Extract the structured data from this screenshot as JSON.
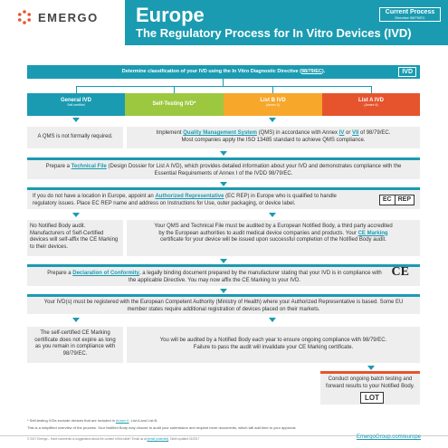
{
  "header": {
    "logo_text": "EMERGO",
    "title": "Europe",
    "subtitle": "The Regulatory Process for In Vitro Devices (IVD)",
    "current_process_label": "Current Process",
    "directive_label": "Directive 98/79/EC"
  },
  "step1": {
    "text_pre": "Determine classification of your IVD using the In Vitro Diagnostic Directive (",
    "text_link": "98/79/EC",
    "text_post": ").",
    "tag": "IVD"
  },
  "columns": [
    {
      "label": "General IVD",
      "sub": "Self-certified"
    },
    {
      "label": "Self-Testing IVD*",
      "sub": ""
    },
    {
      "label": "List B IVD",
      "sub": "(Annex II)"
    },
    {
      "label": "List A IVD",
      "sub": "(Annex II)"
    }
  ],
  "qms": {
    "left": "A QMS is not formally required.",
    "right_pre": "Implement ",
    "right_link": "Quality Management System",
    "right_mid": " (QMS) in accordance with Annex ",
    "annex_iv": "IV",
    "right_or": " or ",
    "annex_vii": "VII",
    "right_post": " of 98/79/EC.",
    "right_line2": "Most companies apply the ISO 13485 standard to achieve QMS compliance."
  },
  "technical_file": {
    "pre": "Prepare a ",
    "link": "Technical File",
    "post": " (Design Dossier for List A IVD), which provides detailed information about your IVD and demonstrates compliance with the Essential Requirements of Annex I of the IVDD 98/79/EC."
  },
  "authorized_rep": {
    "pre": "If you do not have a location in Europe, appoint an ",
    "link": "Authorized Representative",
    "post": " (EC REP) in Europe who is qualified to handle regulatory issues. Place EC REP name and address on Instructions for Use, outer packaging, or device label.",
    "badge_left": "EC",
    "badge_right": "REP"
  },
  "audit": {
    "left": "No Notified Body audit. Manufacturers of Self-Certified devices will self-affix the CE Marking to their devices.",
    "right_pre": "Your QMS and Technical File must be audited by a European Notified Body, a third party accredited by the European authorities to audit medical device companies and products. Your ",
    "right_link": "CE Marking",
    "right_post": " certificate for your device will be issued upon successful completion of the Notified Body audit."
  },
  "declaration": {
    "pre": "Prepare a ",
    "link": "Declaration of Conformity",
    "post": ", a legally binding document prepared by the manufacturer stating that your IVD is in compliance with the applicable Directive. You may now affix the CE Marking to your IVD.",
    "ce_mark": "CE"
  },
  "registration": {
    "text": "Your IVD(s) must be registered with the European Competent Authority (Ministry of Health) where your Authorized Representative is based. Some EU member states require additional registration of devices placed on their markets."
  },
  "annual": {
    "left": "The self-certified CE Marking certificate does not expire as long as you remain in compliance with 98/79/EC.",
    "right": "You will be audited by a Notified Body each year to ensure ongoing compliance with 98/79/EC. Failure to pass the audit will invalidate your CE Marking certificate."
  },
  "batch": {
    "text": "Conduct ongoing batch testing and forward results to your Notified Body.",
    "lot": "LOT"
  },
  "footnotes": {
    "selftest_pre": "* Self-testing IVDs exclude devices that are included in ",
    "selftest_link": "Annex II",
    "selftest_post": ", List A and List B.",
    "simplified": "This is a simplified overview of the process. Your Notified Body may choose to audit your submission and request more documents, which will add time to your approval.",
    "copyright_pre": "© 2017 Emergo – Have comments or suggestions about the content of this table? Email us at ",
    "copyright_email": "[email protected]",
    "copyright_post": ". Table updated 01/2017",
    "url": "EmergoGroup.com/europe"
  },
  "colors": {
    "teal": "#1a9bb1",
    "green": "#9cc840",
    "orange": "#f7a72a",
    "red": "#e5542d",
    "gray_box": "#eeeeee"
  }
}
